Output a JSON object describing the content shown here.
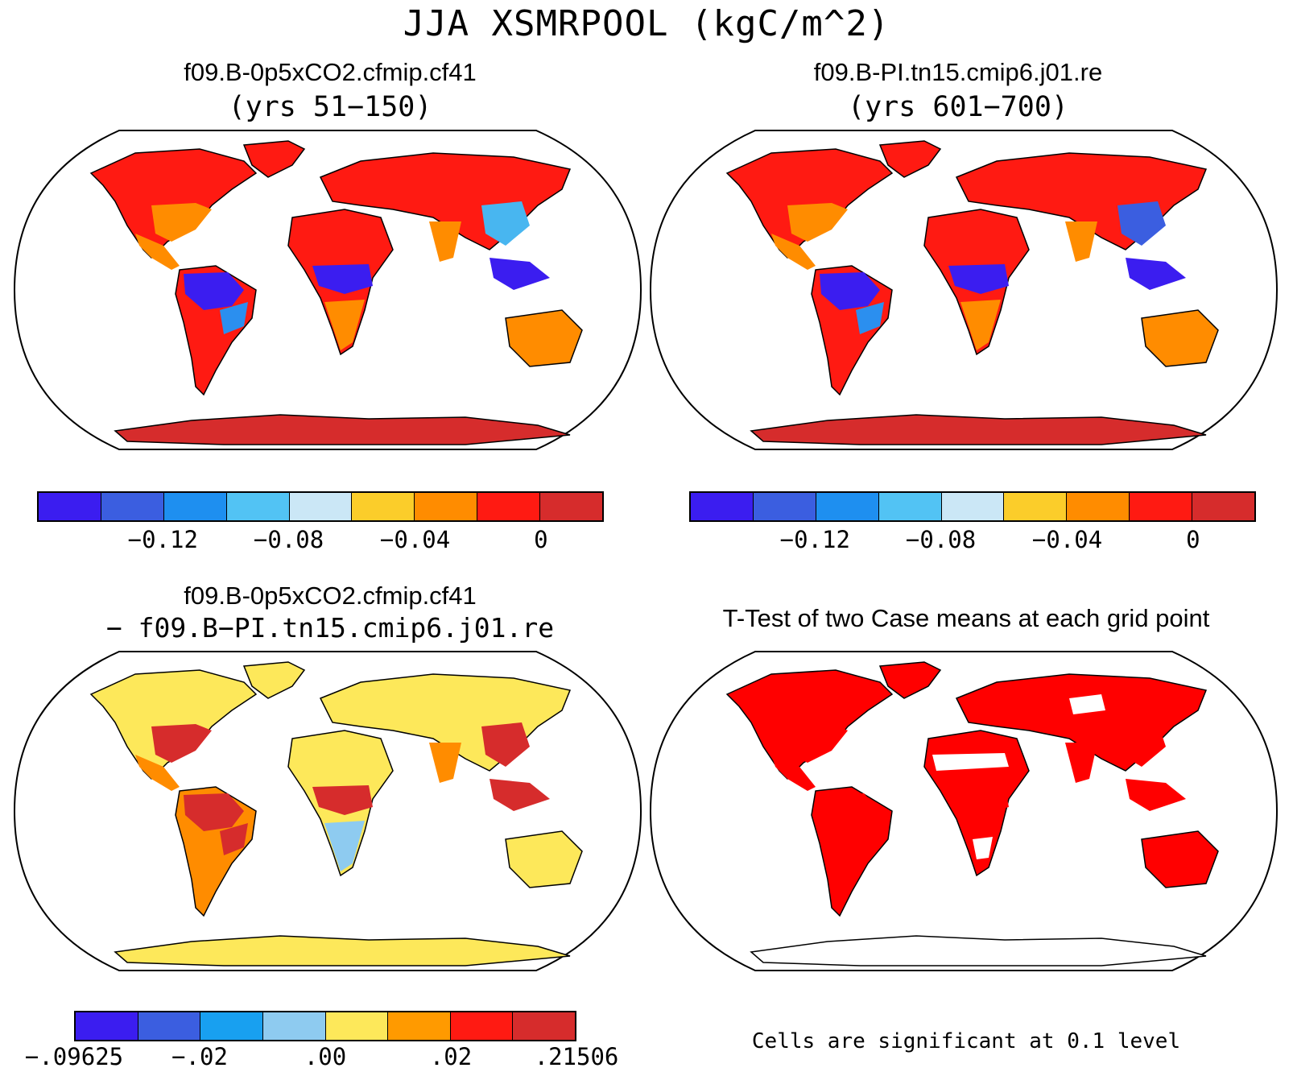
{
  "figure": {
    "title": "JJA XSMRPOOL (kgC/m^2)"
  },
  "panels": [
    {
      "id": "case1",
      "title": "f09.B-0p5xCO2.cfmip.cf41",
      "subtitle": "(yrs 51-150)",
      "land_color": "#ff1a12",
      "region_colors": {
        "north_america": "#ff1a12",
        "usa_east": "#ff8c00",
        "mexico": "#ff8c00",
        "south_america": "#ff1a12",
        "amazon": "#3b1df0",
        "south_brazil": "#2b8fef",
        "africa": "#ff1a12",
        "africa_central": "#3b1df0",
        "africa_south": "#ff8c00",
        "eurasia": "#ff1a12",
        "east_asia": "#48b6f0",
        "india": "#ff8c00",
        "se_asia": "#3b1df0",
        "australia": "#ff8c00",
        "antarctica": "#d62c2c",
        "greenland": "#ff1a12"
      }
    },
    {
      "id": "case2",
      "title": "f09.B-PI.tn15.cmip6.j01.re",
      "subtitle": "(yrs 601-700)",
      "land_color": "#ff1a12",
      "region_colors": {
        "north_america": "#ff1a12",
        "usa_east": "#ff8c00",
        "mexico": "#ff8c00",
        "south_america": "#ff1a12",
        "amazon": "#3b1df0",
        "south_brazil": "#2b8fef",
        "africa": "#ff1a12",
        "africa_central": "#3b1df0",
        "africa_south": "#ff8c00",
        "eurasia": "#ff1a12",
        "east_asia": "#3b5ee0",
        "india": "#ff8c00",
        "se_asia": "#3b1df0",
        "australia": "#ff8c00",
        "antarctica": "#d62c2c",
        "greenland": "#ff1a12"
      }
    },
    {
      "id": "difference",
      "title": "f09.B-0p5xCO2.cfmip.cf41",
      "subtitle": "- f09.B-PI.tn15.cmip6.j01.re",
      "land_color": "#fde85a",
      "region_colors": {
        "north_america": "#fde85a",
        "usa_east": "#d62c2c",
        "mexico": "#ff8c00",
        "south_america": "#ff8c00",
        "amazon": "#d62c2c",
        "south_brazil": "#d62c2c",
        "africa": "#fde85a",
        "africa_central": "#d62c2c",
        "africa_south": "#8ecbf0",
        "eurasia": "#fde85a",
        "east_asia": "#d62c2c",
        "india": "#ff8c00",
        "se_asia": "#d62c2c",
        "australia": "#fde85a",
        "antarctica": "#fde85a",
        "greenland": "#fde85a"
      }
    },
    {
      "id": "ttest",
      "title": "T-Test of two Case means at each grid point",
      "subtitle": "",
      "land_color": "#ff0000",
      "region_colors": {
        "north_america": "#ff0000",
        "usa_east": "#ff0000",
        "mexico": "#ff0000",
        "south_america": "#ff0000",
        "amazon": "#ff0000",
        "south_brazil": "#ff0000",
        "africa": "#ff0000",
        "africa_central": "#ff0000",
        "africa_south": "#ff0000",
        "eurasia": "#ff0000",
        "east_asia": "#ff0000",
        "india": "#ff0000",
        "se_asia": "#ff0000",
        "australia": "#ff0000",
        "antarctica": "#ffffff",
        "greenland": "#ff0000"
      },
      "note": "Cells are significant at 0.1 level"
    }
  ],
  "colorbars": {
    "case": {
      "colors": [
        "#3b1df0",
        "#3b5ee0",
        "#1e8ff0",
        "#52c3f4",
        "#cbe7f6",
        "#fbcd2a",
        "#ff8c00",
        "#ff1a12",
        "#d62c2c"
      ],
      "labels": [
        "-0.12",
        "-0.08",
        "-0.04",
        "0"
      ]
    },
    "diff": {
      "colors": [
        "#3b1df0",
        "#3b5ee0",
        "#18a0f0",
        "#8ecbf0",
        "#fde85a",
        "#ff9a00",
        "#ff1a12",
        "#d62c2c"
      ],
      "labels": [
        ".00",
        ".02",
        "-.02",
        "-.09625",
        ".21506"
      ]
    }
  },
  "labels_display": {
    "case": [
      "−0.12",
      "−0.08",
      "−0.04",
      "0"
    ],
    "diff": [
      "−.09625",
      "−.02",
      ".00",
      ".02",
      ".21506"
    ],
    "sub1": "(yrs 51−150)",
    "sub2": "(yrs 601−700)",
    "sub3": "− f09.B−PI.tn15.cmip6.j01.re"
  }
}
